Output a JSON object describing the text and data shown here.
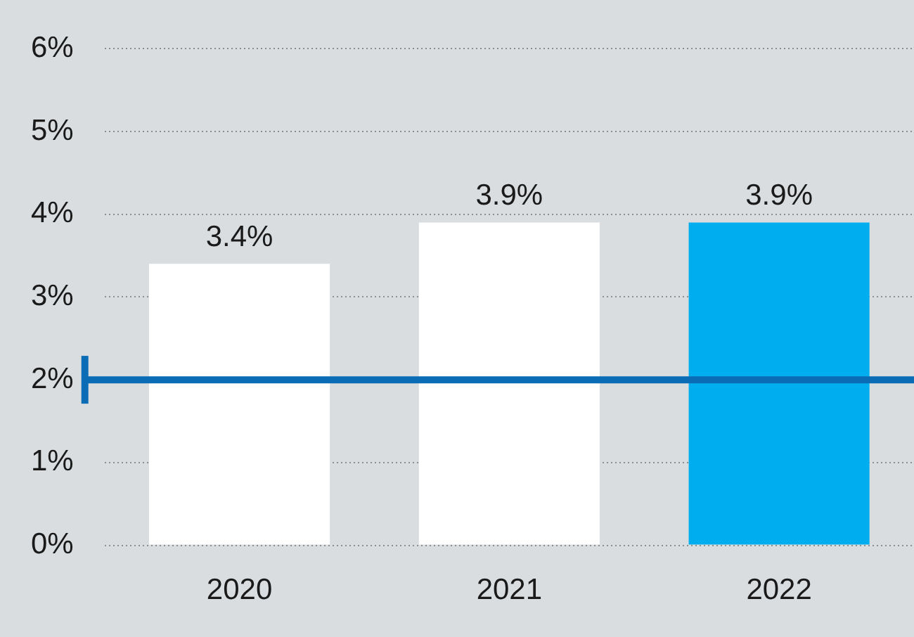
{
  "chart_data": {
    "type": "bar",
    "categories": [
      "2020",
      "2021",
      "2022"
    ],
    "values": [
      3.4,
      3.9,
      3.9
    ],
    "colors": [
      "#ffffff",
      "#ffffff",
      "#00aeef"
    ],
    "ylim": [
      0,
      6
    ],
    "yticks": [
      {
        "value": 0,
        "label": "0%"
      },
      {
        "value": 1,
        "label": "1%"
      },
      {
        "value": 2,
        "label": "2%"
      },
      {
        "value": 3,
        "label": "3%"
      },
      {
        "value": 4,
        "label": "4%"
      },
      {
        "value": 5,
        "label": "5%"
      },
      {
        "value": 6,
        "label": "6%"
      }
    ],
    "value_labels": [
      "3.4%",
      "3.9%",
      "3.9%"
    ],
    "grid": "y",
    "ref_lines": [
      {
        "axis": "y",
        "value": 2,
        "color": "#0a6cb5"
      }
    ]
  }
}
